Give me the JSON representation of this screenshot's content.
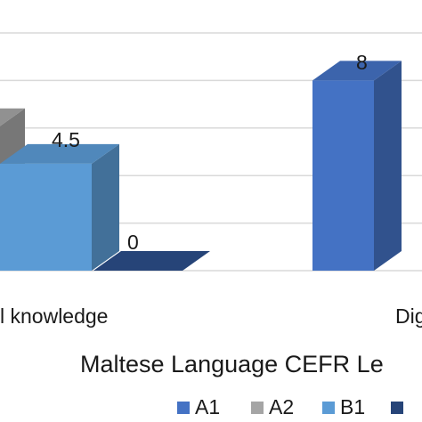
{
  "chart_data": {
    "type": "bar",
    "categories": [
      "l knowledge",
      "Dig"
    ],
    "series": [
      {
        "name": "A1",
        "color": "#4472C4",
        "values": [
          null,
          8
        ]
      },
      {
        "name": "A2",
        "color": "#A5A5A5",
        "values": [
          6,
          null
        ]
      },
      {
        "name": "B1",
        "color": "#5B9BD5",
        "values": [
          4.5,
          null
        ]
      },
      {
        "name": "",
        "color": "#264478",
        "values": [
          0,
          null
        ]
      }
    ],
    "data_labels": [
      {
        "series": 2,
        "category": 0,
        "text": "4.5"
      },
      {
        "series": 3,
        "category": 0,
        "text": "0"
      },
      {
        "series": 0,
        "category": 1,
        "text": "8"
      }
    ],
    "xlabel": "Maltese Language CEFR Le",
    "ylabel": "",
    "title": "",
    "grid": true,
    "legend_position": "bottom",
    "legend": [
      "A1",
      "A2",
      "B1",
      ""
    ]
  }
}
